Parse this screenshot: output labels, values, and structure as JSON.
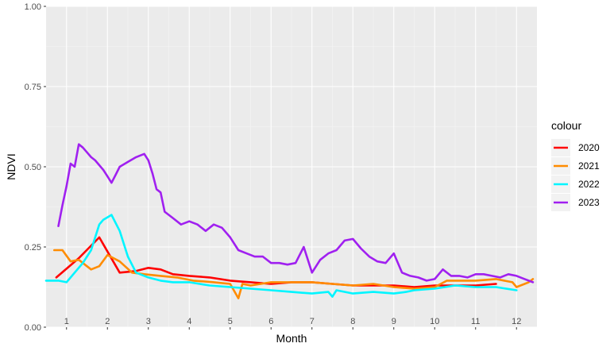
{
  "chart_data": {
    "type": "line",
    "xlabel": "Month",
    "ylabel": "NDVI",
    "xlim": [
      0.5,
      12.5
    ],
    "ylim": [
      0,
      1
    ],
    "y_ticks": [
      "0.00",
      "0.25",
      "0.50",
      "0.75",
      "1.00"
    ],
    "y_tick_values": [
      0,
      0.25,
      0.5,
      0.75,
      1.0
    ],
    "x_tick_labels": [
      "1",
      "2",
      "3",
      "4",
      "5",
      "6",
      "7",
      "8",
      "9",
      "10",
      "11",
      "12"
    ],
    "x_tick_values": [
      1,
      2,
      3,
      4,
      5,
      6,
      7,
      8,
      9,
      10,
      11,
      12
    ],
    "grid": true,
    "legend": {
      "title": "colour",
      "position": "right"
    },
    "series": [
      {
        "name": "2020",
        "color": "#ff0000",
        "x": [
          0.75,
          1.3,
          1.8,
          2.3,
          2.7,
          3.0,
          3.3,
          3.6,
          4.0,
          4.5,
          5.0,
          5.5,
          6.0,
          6.5,
          7.0,
          7.5,
          8.0,
          8.5,
          9.0,
          9.5,
          10.0,
          10.5,
          11.0,
          11.5
        ],
        "y": [
          0.155,
          0.215,
          0.28,
          0.17,
          0.175,
          0.185,
          0.18,
          0.165,
          0.16,
          0.155,
          0.145,
          0.14,
          0.135,
          0.14,
          0.14,
          0.135,
          0.13,
          0.13,
          0.13,
          0.125,
          0.13,
          0.13,
          0.13,
          0.135
        ]
      },
      {
        "name": "2021",
        "color": "#ff8c00",
        "x": [
          0.7,
          0.9,
          1.1,
          1.3,
          1.4,
          1.6,
          1.8,
          2.0,
          2.3,
          2.6,
          2.9,
          3.3,
          3.7,
          4.1,
          4.6,
          5.0,
          5.2,
          5.3,
          5.5,
          6.0,
          6.5,
          7.0,
          7.5,
          8.0,
          8.5,
          9.0,
          9.5,
          10.0,
          10.3,
          10.6,
          11.0,
          11.5,
          11.9,
          12.0,
          12.3,
          12.4
        ],
        "y": [
          0.24,
          0.24,
          0.205,
          0.21,
          0.2,
          0.18,
          0.19,
          0.225,
          0.205,
          0.17,
          0.165,
          0.16,
          0.155,
          0.145,
          0.14,
          0.135,
          0.09,
          0.135,
          0.13,
          0.14,
          0.14,
          0.14,
          0.135,
          0.13,
          0.135,
          0.125,
          0.12,
          0.125,
          0.145,
          0.145,
          0.145,
          0.15,
          0.14,
          0.125,
          0.14,
          0.15
        ]
      },
      {
        "name": "2022",
        "color": "#00f5ff",
        "x": [
          0.5,
          0.8,
          1.0,
          1.2,
          1.4,
          1.6,
          1.8,
          1.9,
          2.1,
          2.3,
          2.5,
          2.7,
          3.0,
          3.3,
          3.6,
          4.0,
          4.5,
          5.0,
          5.5,
          6.0,
          6.5,
          7.0,
          7.4,
          7.5,
          7.6,
          8.0,
          8.5,
          9.0,
          9.3,
          9.5,
          10.0,
          10.5,
          11.0,
          11.5,
          12.0
        ],
        "y": [
          0.145,
          0.145,
          0.14,
          0.17,
          0.2,
          0.24,
          0.32,
          0.335,
          0.35,
          0.3,
          0.22,
          0.17,
          0.155,
          0.145,
          0.14,
          0.14,
          0.13,
          0.125,
          0.12,
          0.115,
          0.11,
          0.105,
          0.11,
          0.095,
          0.115,
          0.105,
          0.11,
          0.105,
          0.11,
          0.115,
          0.12,
          0.13,
          0.125,
          0.125,
          0.115
        ]
      },
      {
        "name": "2023",
        "color": "#a020f0",
        "x": [
          0.8,
          0.9,
          1.0,
          1.1,
          1.2,
          1.3,
          1.4,
          1.5,
          1.6,
          1.7,
          1.8,
          1.9,
          2.0,
          2.1,
          2.2,
          2.3,
          2.5,
          2.7,
          2.9,
          3.0,
          3.1,
          3.2,
          3.3,
          3.4,
          3.6,
          3.8,
          4.0,
          4.2,
          4.4,
          4.6,
          4.8,
          5.0,
          5.2,
          5.4,
          5.6,
          5.8,
          6.0,
          6.2,
          6.4,
          6.6,
          6.8,
          7.0,
          7.2,
          7.4,
          7.6,
          7.8,
          8.0,
          8.2,
          8.4,
          8.6,
          8.8,
          9.0,
          9.2,
          9.4,
          9.6,
          9.8,
          10.0,
          10.2,
          10.4,
          10.6,
          10.8,
          11.0,
          11.2,
          11.4,
          11.6,
          11.8,
          12.0,
          12.2,
          12.4
        ],
        "y": [
          0.315,
          0.38,
          0.44,
          0.51,
          0.5,
          0.57,
          0.56,
          0.545,
          0.53,
          0.52,
          0.505,
          0.49,
          0.47,
          0.45,
          0.475,
          0.5,
          0.515,
          0.53,
          0.54,
          0.52,
          0.48,
          0.43,
          0.42,
          0.36,
          0.34,
          0.32,
          0.33,
          0.32,
          0.3,
          0.32,
          0.31,
          0.28,
          0.24,
          0.23,
          0.22,
          0.22,
          0.2,
          0.2,
          0.195,
          0.2,
          0.25,
          0.17,
          0.21,
          0.23,
          0.24,
          0.27,
          0.275,
          0.245,
          0.22,
          0.205,
          0.2,
          0.23,
          0.17,
          0.16,
          0.155,
          0.145,
          0.15,
          0.18,
          0.16,
          0.16,
          0.155,
          0.165,
          0.165,
          0.16,
          0.155,
          0.165,
          0.16,
          0.15,
          0.14
        ]
      }
    ]
  }
}
